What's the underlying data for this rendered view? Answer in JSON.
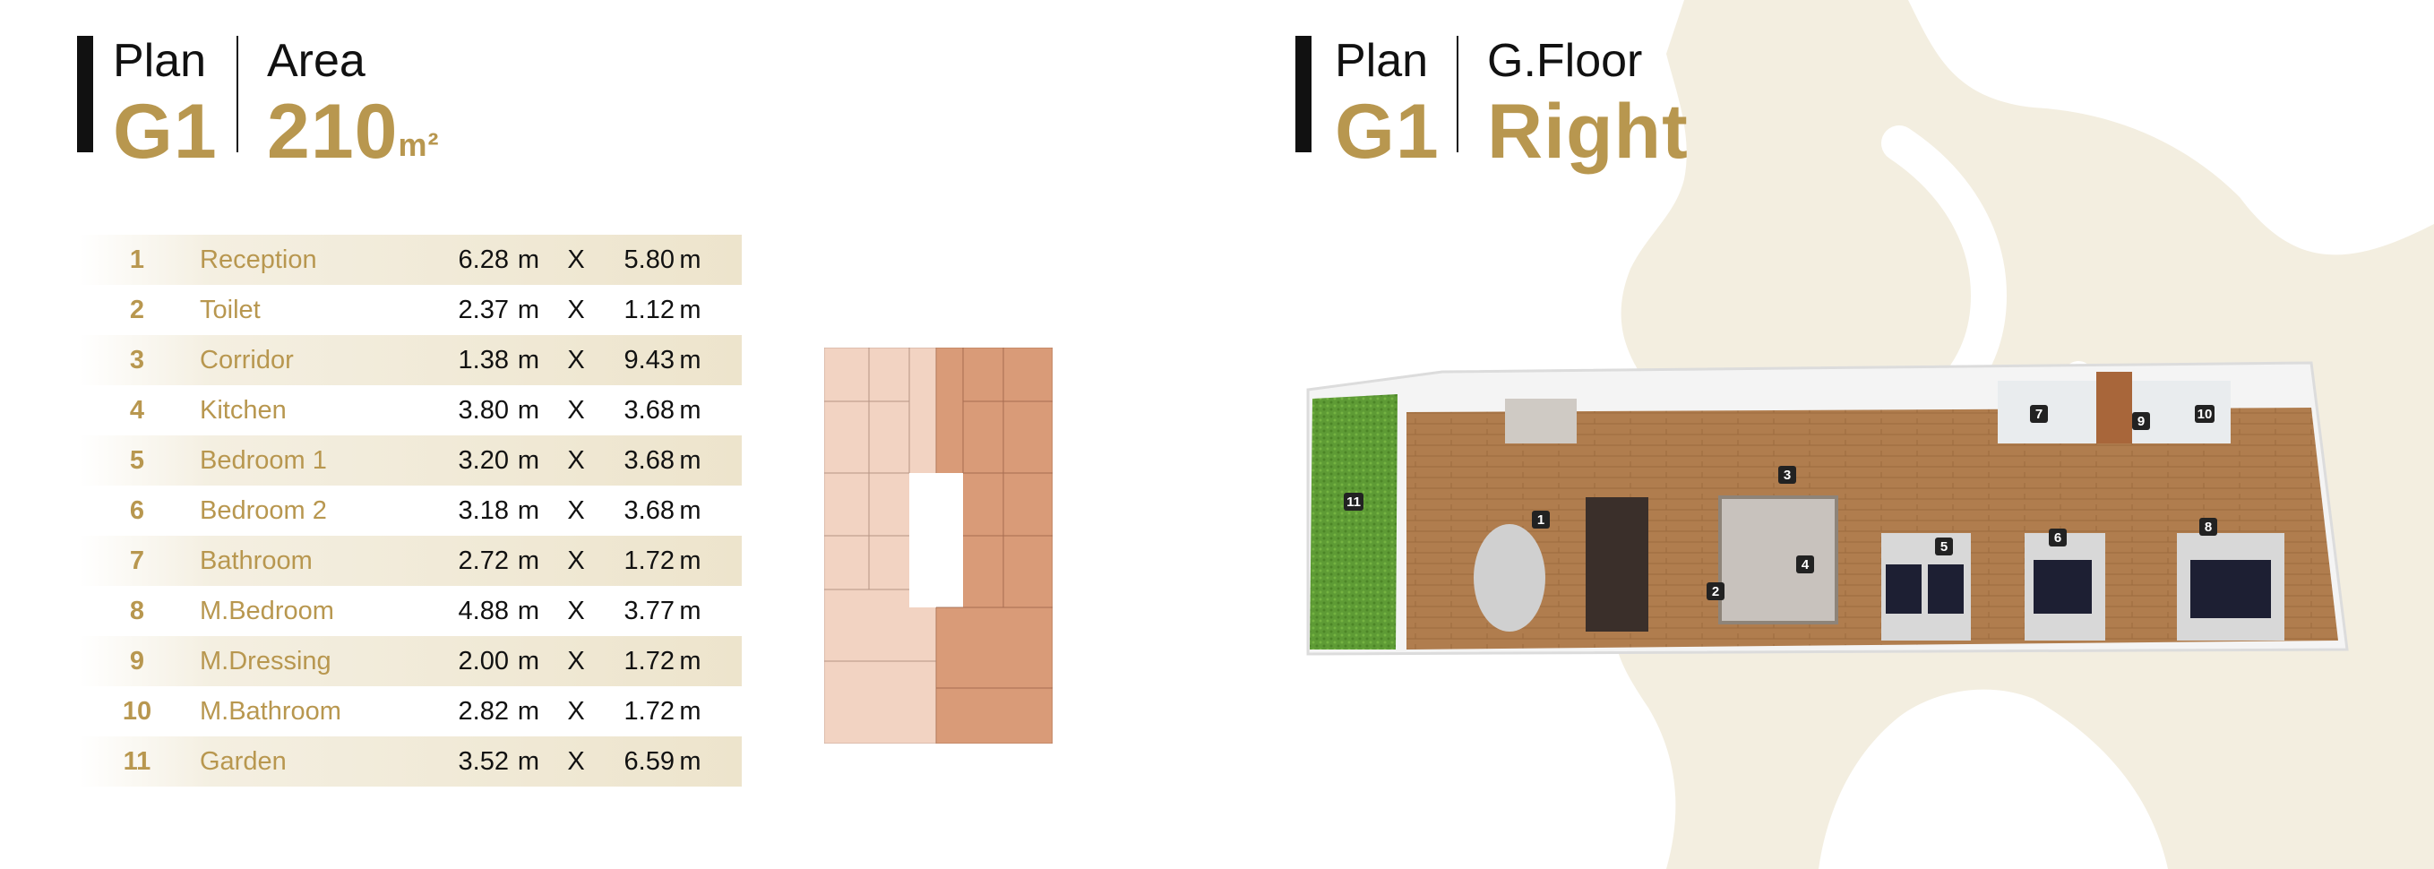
{
  "left_header": {
    "plan_label": "Plan",
    "plan_value": "G1",
    "area_label": "Area",
    "area_value": "210",
    "area_unit": "m²"
  },
  "right_header": {
    "plan_label": "Plan",
    "plan_value": "G1",
    "floor_label": "G.Floor",
    "floor_value": "Right"
  },
  "rooms": [
    {
      "num": "1",
      "name": "Reception",
      "w": "6.28",
      "l": "5.80",
      "unit": "m",
      "x": "X"
    },
    {
      "num": "2",
      "name": "Toilet",
      "w": "2.37",
      "l": "1.12",
      "unit": "m",
      "x": "X"
    },
    {
      "num": "3",
      "name": "Corridor",
      "w": "1.38",
      "l": "9.43",
      "unit": "m",
      "x": "X"
    },
    {
      "num": "4",
      "name": "Kitchen",
      "w": "3.80",
      "l": "3.68",
      "unit": "m",
      "x": "X"
    },
    {
      "num": "5",
      "name": "Bedroom 1",
      "w": "3.20",
      "l": "3.68",
      "unit": "m",
      "x": "X"
    },
    {
      "num": "6",
      "name": "Bedroom 2",
      "w": "3.18",
      "l": "3.68",
      "unit": "m",
      "x": "X"
    },
    {
      "num": "7",
      "name": "Bathroom",
      "w": "2.72",
      "l": "1.72",
      "unit": "m",
      "x": "X"
    },
    {
      "num": "8",
      "name": "M.Bedroom",
      "w": "4.88",
      "l": "3.77",
      "unit": "m",
      "x": "X"
    },
    {
      "num": "9",
      "name": "M.Dressing",
      "w": "2.00",
      "l": "1.72",
      "unit": "m",
      "x": "X"
    },
    {
      "num": "10",
      "name": "M.Bathroom",
      "w": "2.82",
      "l": "1.72",
      "unit": "m",
      "x": "X"
    },
    {
      "num": "11",
      "name": "Garden",
      "w": "3.52",
      "l": "6.59",
      "unit": "m",
      "x": "X"
    }
  ],
  "render_markers": [
    "1",
    "2",
    "3",
    "4",
    "5",
    "6",
    "7",
    "8",
    "9",
    "10",
    "11"
  ],
  "colors": {
    "gold": "#b8974f",
    "shade": "#ede4cc",
    "accent_bar": "#111111",
    "lion_watermark": "#f1ecdc",
    "mini_plan_left": "#f0cfbd",
    "mini_plan_right": "#d99c7b"
  }
}
